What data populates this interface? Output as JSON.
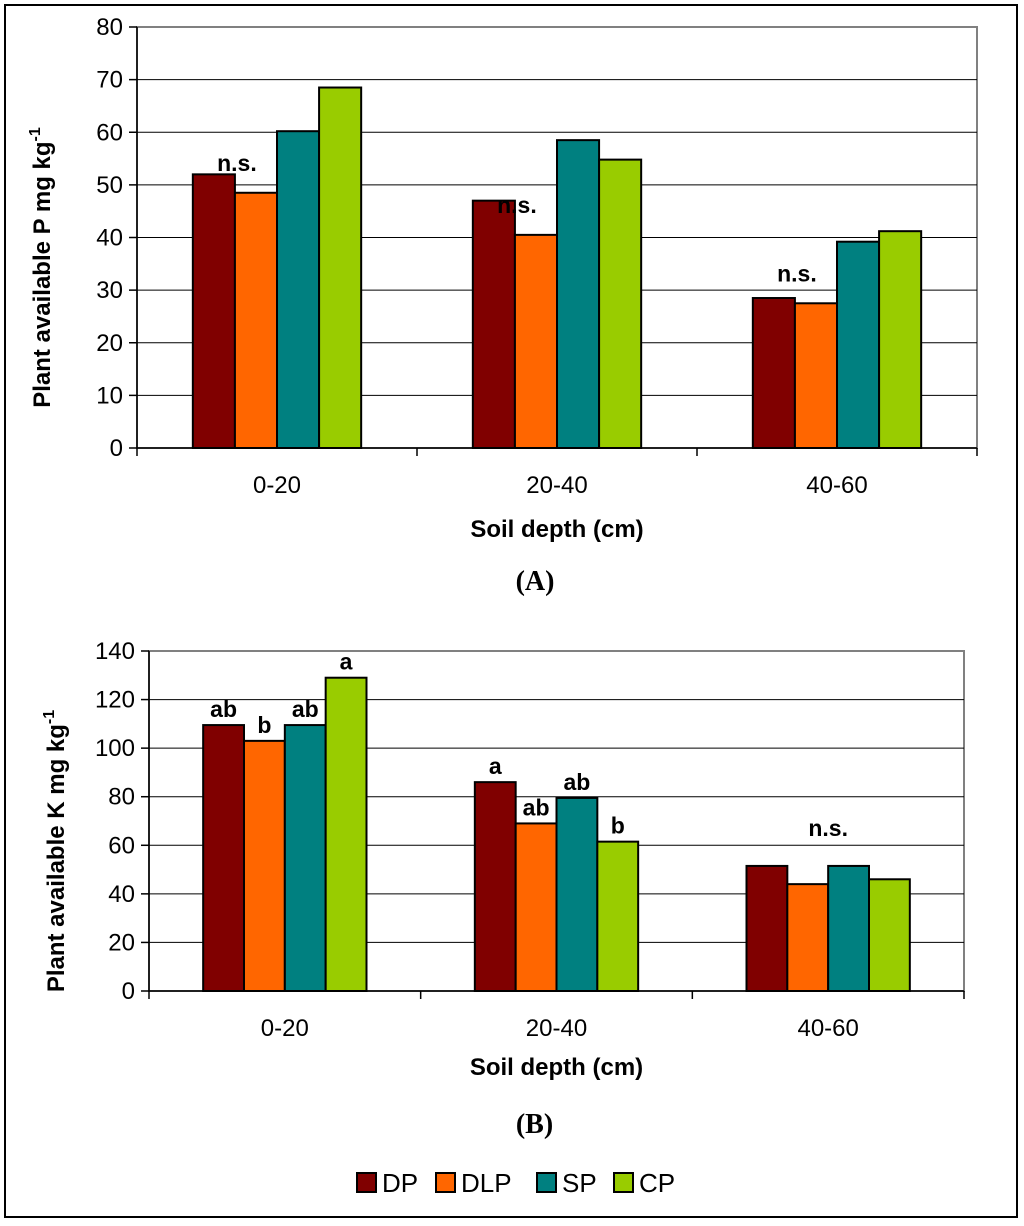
{
  "legend": [
    {
      "key": "DP",
      "color": "#800000"
    },
    {
      "key": "DLP",
      "color": "#FF6600"
    },
    {
      "key": "SP",
      "color": "#008080"
    },
    {
      "key": "CP",
      "color": "#99CC00"
    }
  ],
  "chart_data": [
    {
      "type": "bar",
      "panel_label": "(A)",
      "xlabel": "Soil depth (cm)",
      "ylabel": "Plant available P mg kg",
      "ylabel_sup": "-1",
      "ylim": [
        0,
        80
      ],
      "yticks": [
        0,
        10,
        20,
        30,
        40,
        50,
        60,
        70,
        80
      ],
      "categories": [
        "0-20",
        "20-40",
        "40-60"
      ],
      "series": [
        {
          "name": "DP",
          "values": [
            52,
            47,
            28.5
          ]
        },
        {
          "name": "DLP",
          "values": [
            48.5,
            40.5,
            27.5
          ]
        },
        {
          "name": "SP",
          "values": [
            60.2,
            58.5,
            39.2
          ]
        },
        {
          "name": "CP",
          "values": [
            68.5,
            54.8,
            41.2
          ]
        }
      ],
      "group_annotations": [
        "n.s.",
        "n.s.",
        "n.s."
      ],
      "bar_annotations": null,
      "grid": true
    },
    {
      "type": "bar",
      "panel_label": "(B)",
      "xlabel": "Soil depth (cm)",
      "ylabel": "Plant available K mg kg",
      "ylabel_sup": "-1",
      "ylim": [
        0,
        140
      ],
      "yticks": [
        0,
        20,
        40,
        60,
        80,
        100,
        120,
        140
      ],
      "categories": [
        "0-20",
        "20-40",
        "40-60"
      ],
      "series": [
        {
          "name": "DP",
          "values": [
            109.5,
            86,
            51.5
          ]
        },
        {
          "name": "DLP",
          "values": [
            103,
            69,
            44
          ]
        },
        {
          "name": "SP",
          "values": [
            109.5,
            79.5,
            51.5
          ]
        },
        {
          "name": "CP",
          "values": [
            129,
            61.5,
            46
          ]
        }
      ],
      "group_annotations": [
        "",
        "",
        "n.s."
      ],
      "bar_annotations": [
        [
          "ab",
          "b",
          "ab",
          "a"
        ],
        [
          "a",
          "ab",
          "ab",
          "b"
        ],
        [
          "",
          "",
          "",
          ""
        ]
      ],
      "grid": true
    }
  ]
}
